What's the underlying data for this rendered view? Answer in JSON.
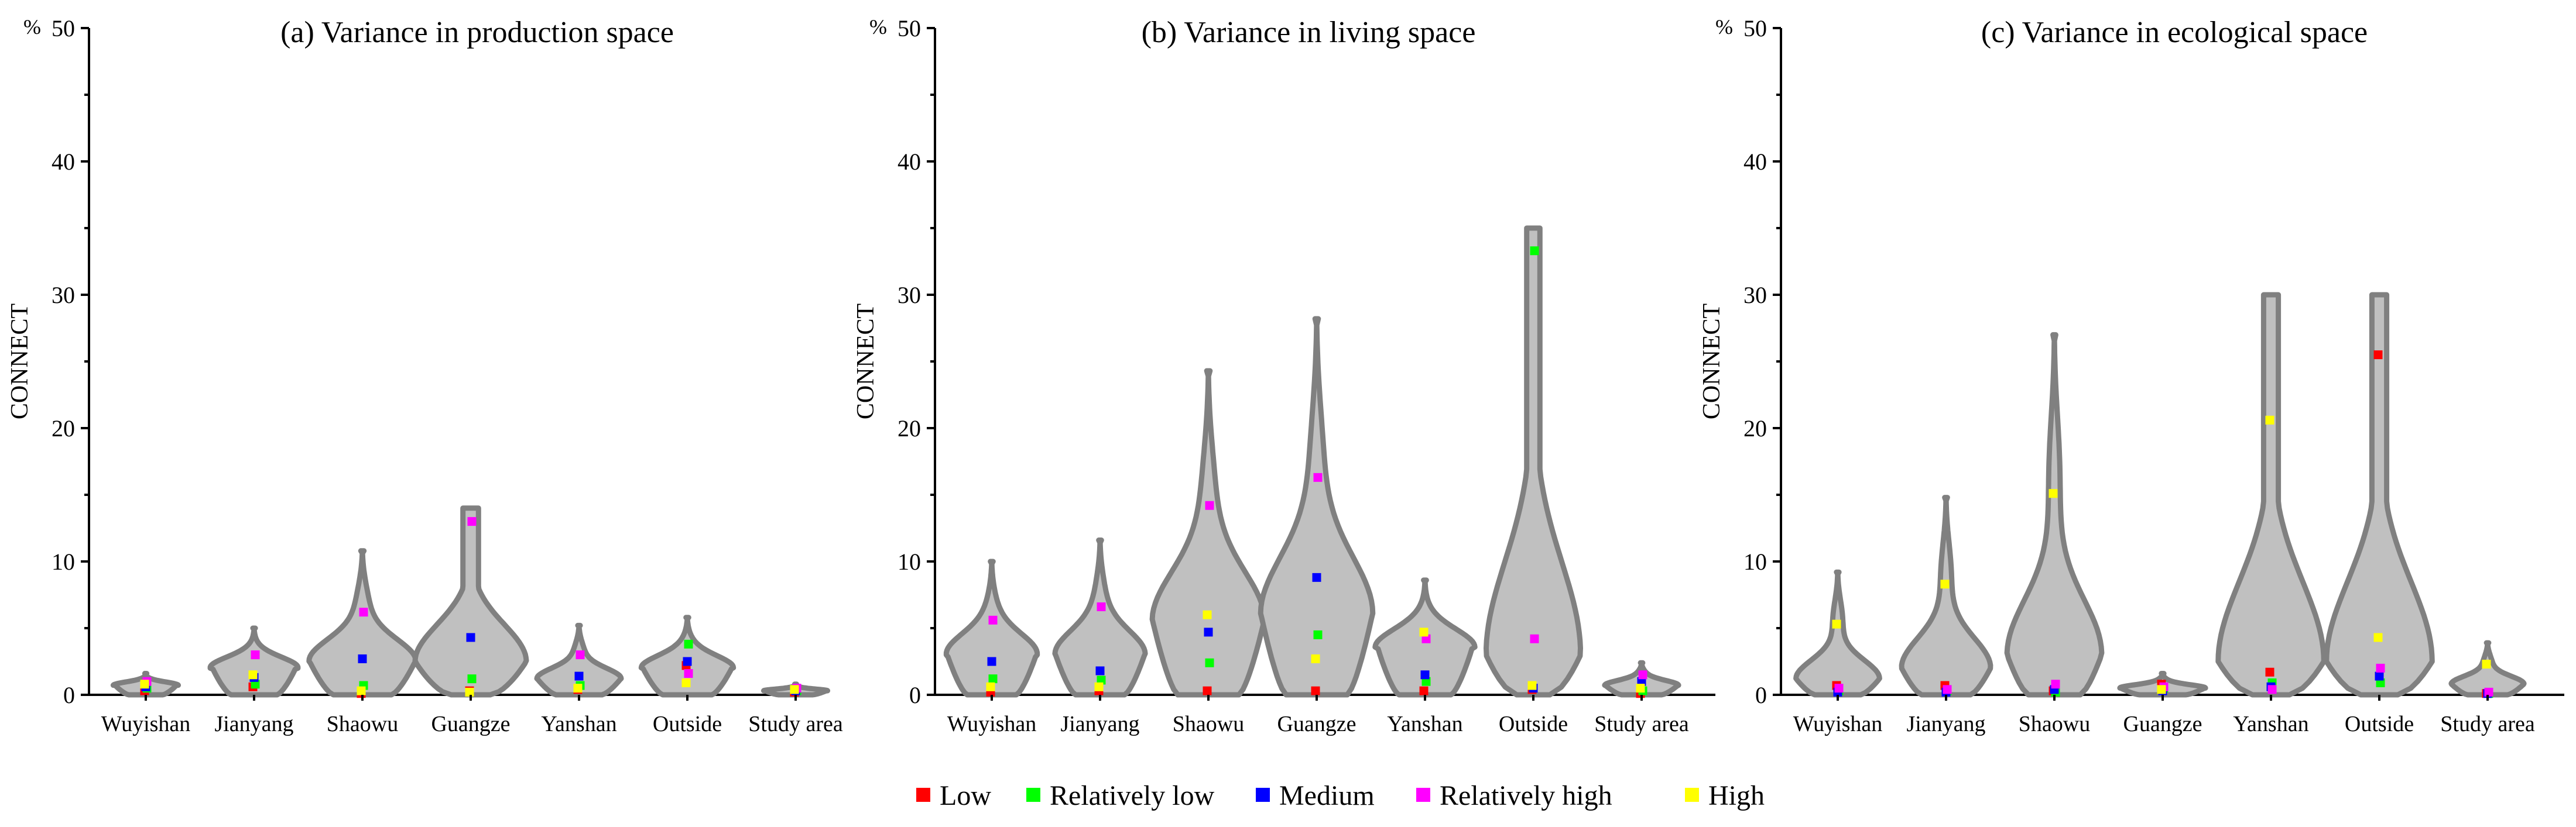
{
  "colors": {
    "Low": "#ff0000",
    "Relatively low": "#00ff00",
    "Medium": "#0000ff",
    "Relatively high": "#ff00ff",
    "High": "#ffff00",
    "violin_fill": "#c0c0c0",
    "violin_stroke": "#808080"
  },
  "legend": {
    "items": [
      "Low",
      "Relatively low",
      "Medium",
      "Relatively high",
      "High"
    ]
  },
  "chart_data": [
    {
      "type": "violin",
      "title": "(a) Variance in production space",
      "ylabel": "CONNECT",
      "unit": "%",
      "ylim": [
        0,
        50
      ],
      "yticks": [
        0,
        10,
        20,
        30,
        40,
        50
      ],
      "categories": [
        "Wuyishan",
        "Jianyang",
        "Shaowu",
        "Guangze",
        "Yanshan",
        "Outside",
        "Study area"
      ],
      "violins": [
        {
          "max": 1.6,
          "peak": 0.7,
          "width": 0.55,
          "flat_top": false
        },
        {
          "max": 5.0,
          "peak": 2.0,
          "width": 0.75,
          "flat_top": false
        },
        {
          "max": 10.8,
          "peak": 2.5,
          "width": 0.95,
          "flat_top": false
        },
        {
          "max": 14.0,
          "peak": 2.5,
          "width": 1.0,
          "flat_top": true
        },
        {
          "max": 5.2,
          "peak": 1.2,
          "width": 0.75,
          "flat_top": false
        },
        {
          "max": 5.8,
          "peak": 2.0,
          "width": 0.8,
          "flat_top": false
        },
        {
          "max": 0.8,
          "peak": 0.3,
          "width": 0.55,
          "flat_top": false
        }
      ],
      "series": [
        {
          "name": "Low",
          "values": [
            0.3,
            0.6,
            0.1,
            0.3,
            0.4,
            2.2,
            0.2
          ]
        },
        {
          "name": "Relatively low",
          "values": [
            0.5,
            0.8,
            0.7,
            1.2,
            0.7,
            3.8,
            0.3
          ]
        },
        {
          "name": "Medium",
          "values": [
            0.6,
            1.3,
            2.7,
            4.3,
            1.4,
            2.5,
            0.3
          ]
        },
        {
          "name": "Relatively high",
          "values": [
            1.0,
            3.0,
            6.2,
            13.0,
            3.0,
            1.6,
            0.5
          ]
        },
        {
          "name": "High",
          "values": [
            0.8,
            1.5,
            0.3,
            0.2,
            0.5,
            0.9,
            0.4
          ]
        }
      ]
    },
    {
      "type": "violin",
      "title": "(b) Variance in living space",
      "ylabel": "CONNECT",
      "unit": "%",
      "ylim": [
        0,
        50
      ],
      "yticks": [
        0,
        10,
        20,
        30,
        40,
        50
      ],
      "categories": [
        "Wuyishan",
        "Jianyang",
        "Shaowu",
        "Guangze",
        "Yanshan",
        "Outside",
        "Study area"
      ],
      "violins": [
        {
          "max": 10.0,
          "peak": 3.0,
          "width": 0.8,
          "flat_top": false
        },
        {
          "max": 11.6,
          "peak": 3.0,
          "width": 0.8,
          "flat_top": false
        },
        {
          "max": 24.3,
          "peak": 5.5,
          "width": 1.0,
          "flat_top": false
        },
        {
          "max": 28.2,
          "peak": 6.0,
          "width": 1.0,
          "flat_top": false
        },
        {
          "max": 8.6,
          "peak": 3.5,
          "width": 0.85,
          "flat_top": false
        },
        {
          "max": 35.0,
          "peak": 3.0,
          "width": 0.85,
          "flat_top": true
        },
        {
          "max": 2.4,
          "peak": 0.7,
          "width": 0.65,
          "flat_top": false
        }
      ],
      "series": [
        {
          "name": "Low",
          "values": [
            0.2,
            0.3,
            0.3,
            0.3,
            0.3,
            0.4,
            0.1
          ]
        },
        {
          "name": "Relatively low",
          "values": [
            1.2,
            1.1,
            2.4,
            4.5,
            1.0,
            33.3,
            0.3
          ]
        },
        {
          "name": "Medium",
          "values": [
            2.5,
            1.8,
            4.7,
            8.8,
            1.5,
            0.5,
            1.0
          ]
        },
        {
          "name": "Relatively high",
          "values": [
            5.6,
            6.6,
            14.2,
            16.3,
            4.2,
            4.2,
            1.5
          ]
        },
        {
          "name": "High",
          "values": [
            0.6,
            0.6,
            6.0,
            2.7,
            4.7,
            0.7,
            0.5
          ]
        }
      ]
    },
    {
      "type": "violin",
      "title": "(c) Variance in ecological space",
      "ylabel": "CONNECT",
      "unit": "%",
      "ylim": [
        0,
        50
      ],
      "yticks": [
        0,
        10,
        20,
        30,
        40,
        50
      ],
      "categories": [
        "Wuyishan",
        "Jianyang",
        "Shaowu",
        "Guangze",
        "Yanshan",
        "Outside",
        "Study area"
      ],
      "violins": [
        {
          "max": 9.2,
          "peak": 1.2,
          "width": 0.75,
          "flat_top": false
        },
        {
          "max": 14.8,
          "peak": 2.0,
          "width": 0.8,
          "flat_top": false
        },
        {
          "max": 27.0,
          "peak": 3.0,
          "width": 0.85,
          "flat_top": false
        },
        {
          "max": 1.6,
          "peak": 0.5,
          "width": 0.75,
          "flat_top": false
        },
        {
          "max": 30.0,
          "peak": 2.5,
          "width": 0.95,
          "flat_top": true
        },
        {
          "max": 30.0,
          "peak": 2.5,
          "width": 0.95,
          "flat_top": true
        },
        {
          "max": 3.9,
          "peak": 0.8,
          "width": 0.65,
          "flat_top": false
        }
      ],
      "series": [
        {
          "name": "Low",
          "values": [
            0.7,
            0.7,
            0.3,
            0.8,
            1.7,
            25.5,
            0.1
          ]
        },
        {
          "name": "Relatively low",
          "values": [
            0.3,
            0.3,
            0.2,
            0.5,
            0.9,
            0.9,
            0.1
          ]
        },
        {
          "name": "Medium",
          "values": [
            0.2,
            0.2,
            0.4,
            0.3,
            0.6,
            1.4,
            0.1
          ]
        },
        {
          "name": "Relatively high",
          "values": [
            0.5,
            0.4,
            0.8,
            0.6,
            0.4,
            2.0,
            0.2
          ]
        },
        {
          "name": "High",
          "values": [
            5.3,
            8.3,
            15.1,
            0.4,
            20.6,
            4.3,
            2.3
          ]
        }
      ]
    }
  ]
}
